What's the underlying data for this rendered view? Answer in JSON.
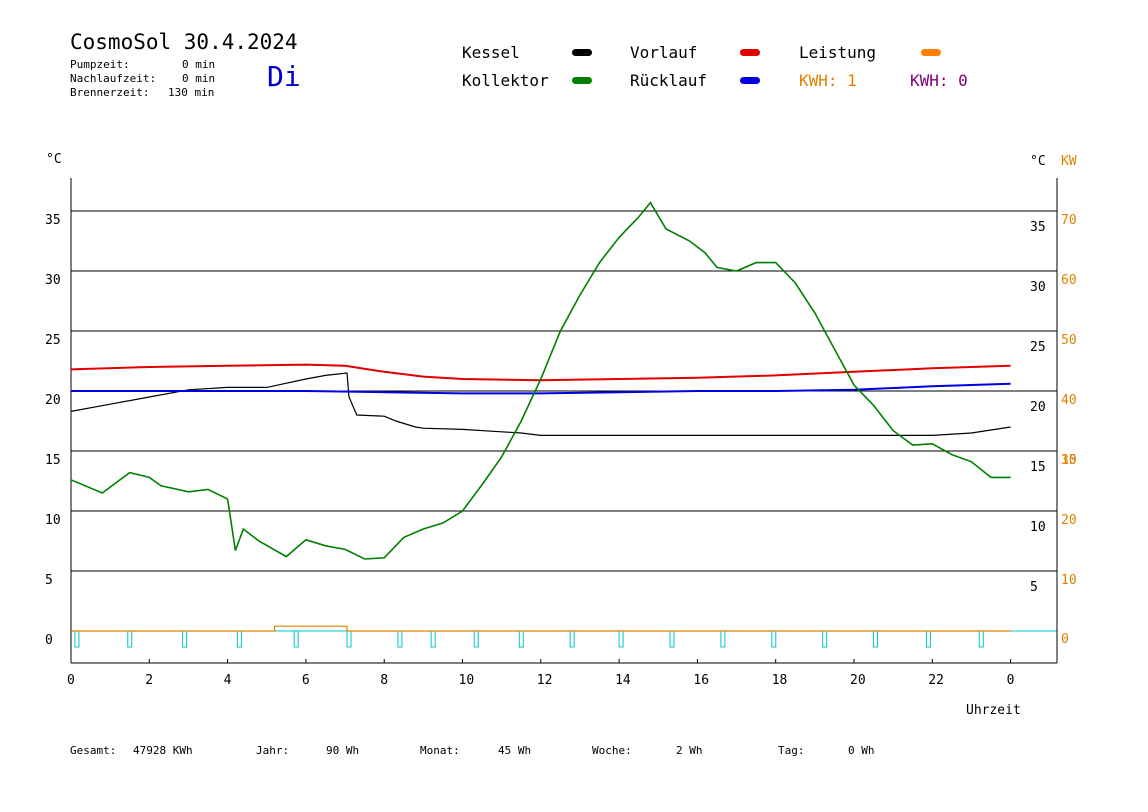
{
  "header": {
    "title": "CosmoSol 30.4.2024",
    "weekday": "Di",
    "stats": [
      {
        "label": "Pumpzeit:",
        "value": "0 min"
      },
      {
        "label": "Nachlaufzeit:",
        "value": "0 min"
      },
      {
        "label": "Brennerzeit:",
        "value": "130 min"
      }
    ]
  },
  "legend": {
    "items": [
      {
        "label": "Kessel",
        "color": "#000000"
      },
      {
        "label": "Vorlauf",
        "color": "#e00000"
      },
      {
        "label": "Leistung",
        "color": "#ff8000"
      },
      {
        "label": "Kollektor",
        "color": "#008000"
      },
      {
        "label": "Rücklauf",
        "color": "#0000e0"
      }
    ],
    "kwh": [
      {
        "label": "KWH: 1",
        "color": "#e08000"
      },
      {
        "label": "KWH: 0",
        "color": "#800080"
      }
    ]
  },
  "axes": {
    "y_left_unit": "°C",
    "y_right_unit": "°C",
    "y_right2_unit": "KW",
    "x_label": "Uhrzeit"
  },
  "footer": [
    {
      "label": "Gesamt:",
      "value": "47928 KWh"
    },
    {
      "label": "Jahr:",
      "value": "90 Wh"
    },
    {
      "label": "Monat:",
      "value": "45 Wh"
    },
    {
      "label": "Woche:",
      "value": "2 Wh"
    },
    {
      "label": "Tag:",
      "value": "0 Wh"
    }
  ],
  "chart_data": {
    "type": "line",
    "xlim": [
      0,
      24
    ],
    "ylim": [
      -2,
      38
    ],
    "x_ticks": [
      "0",
      "2",
      "4",
      "6",
      "8",
      "10",
      "12",
      "14",
      "16",
      "18",
      "20",
      "22",
      "0"
    ],
    "y_ticks_left": [
      "0",
      "5",
      "10",
      "15",
      "20",
      "25",
      "30",
      "35"
    ],
    "y_ticks_right_temp": [
      "5",
      "10",
      "15",
      "20",
      "25",
      "30",
      "35"
    ],
    "y_ticks_right_kw": [
      "0",
      "10",
      "15",
      "20",
      "30",
      "40",
      "50",
      "60",
      "70"
    ],
    "grid": true,
    "series": [
      {
        "name": "Kessel",
        "color": "#000000",
        "x": [
          0,
          1,
          2,
          3,
          4,
          5,
          6,
          6.5,
          7.05,
          7.1,
          7.3,
          8,
          8.3,
          8.8,
          9,
          10,
          11,
          11.5,
          12,
          13,
          14,
          15,
          16,
          17,
          18,
          19,
          20,
          21,
          22,
          23,
          24
        ],
        "y": [
          18.3,
          18.9,
          19.5,
          20.1,
          20.3,
          20.3,
          21.0,
          21.3,
          21.5,
          19.5,
          18.0,
          17.9,
          17.5,
          17.0,
          16.9,
          16.8,
          16.6,
          16.5,
          16.3,
          16.3,
          16.3,
          16.3,
          16.3,
          16.3,
          16.3,
          16.3,
          16.3,
          16.3,
          16.3,
          16.5,
          17.0
        ]
      },
      {
        "name": "Vorlauf",
        "color": "#e00000",
        "x": [
          0,
          2,
          4,
          6,
          7,
          8,
          9,
          10,
          12,
          14,
          16,
          18,
          20,
          22,
          24
        ],
        "y": [
          21.8,
          22.0,
          22.1,
          22.2,
          22.1,
          21.6,
          21.2,
          21.0,
          20.9,
          21.0,
          21.1,
          21.3,
          21.6,
          21.9,
          22.1
        ]
      },
      {
        "name": "Rücklauf",
        "color": "#0000e0",
        "x": [
          0,
          2,
          4,
          6,
          8,
          10,
          12,
          14,
          16,
          18,
          20,
          22,
          24
        ],
        "y": [
          20.0,
          20.0,
          20.0,
          20.0,
          19.9,
          19.8,
          19.8,
          19.9,
          20.0,
          20.0,
          20.1,
          20.4,
          20.6
        ]
      },
      {
        "name": "Kollektor",
        "color": "#008000",
        "x": [
          0,
          0.8,
          1.5,
          2.0,
          2.3,
          3.0,
          3.5,
          4.0,
          4.2,
          4.4,
          4.8,
          5.5,
          6.0,
          6.5,
          7.0,
          7.5,
          8.0,
          8.5,
          9.0,
          9.5,
          10.0,
          10.5,
          11.0,
          11.5,
          12.0,
          12.5,
          13.0,
          13.5,
          14.0,
          14.5,
          14.8,
          15.2,
          15.8,
          16.2,
          16.5,
          17.0,
          17.5,
          18.0,
          18.5,
          19.0,
          19.5,
          20.0,
          20.5,
          21.0,
          21.5,
          22.0,
          22.5,
          23.0,
          23.5,
          24.0
        ],
        "y": [
          12.6,
          11.5,
          13.2,
          12.8,
          12.1,
          11.6,
          11.8,
          11.0,
          6.7,
          8.5,
          7.5,
          6.2,
          7.6,
          7.1,
          6.8,
          6.0,
          6.1,
          7.8,
          8.5,
          9.0,
          10.0,
          12.2,
          14.5,
          17.5,
          21.0,
          25.0,
          28.0,
          30.7,
          32.8,
          34.5,
          35.7,
          33.5,
          32.5,
          31.5,
          30.3,
          30.0,
          30.7,
          30.7,
          29.0,
          26.5,
          23.5,
          20.5,
          18.8,
          16.7,
          15.5,
          15.6,
          14.7,
          14.1,
          12.8,
          12.8
        ]
      },
      {
        "name": "Leistung",
        "color": "#e08000",
        "x": [
          0,
          5.2,
          5.2,
          7.05,
          7.05,
          24
        ],
        "y": [
          0,
          0,
          0.4,
          0.4,
          0,
          0
        ]
      }
    ],
    "pump_pulses_cyan": [
      0.1,
      1.45,
      2.85,
      4.25,
      5.7,
      7.05,
      8.35,
      9.2,
      10.3,
      11.45,
      12.75,
      14.0,
      15.3,
      16.6,
      17.9,
      19.2,
      20.5,
      21.85,
      23.2
    ]
  }
}
